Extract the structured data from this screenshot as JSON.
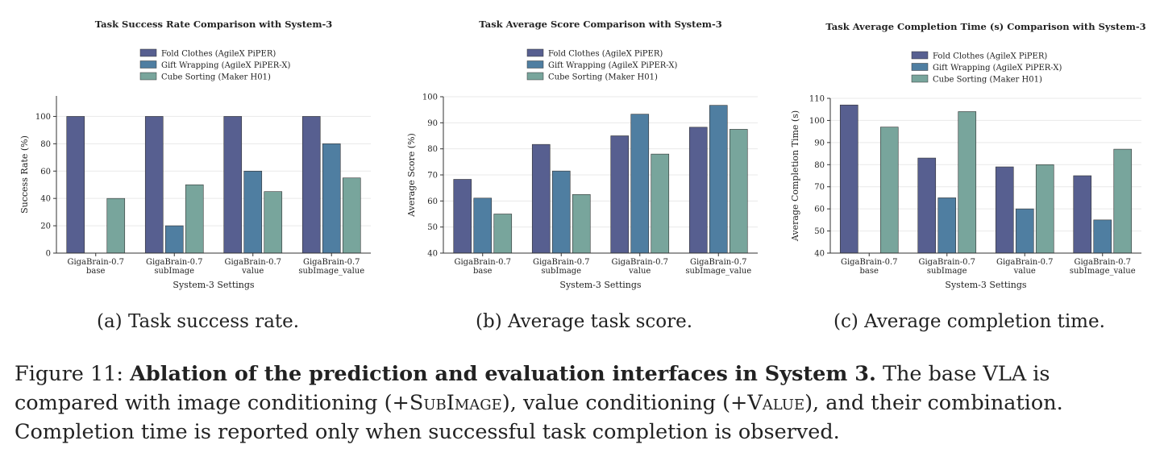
{
  "charts": [
    {
      "id": "a",
      "subcaption": "(a) Task success rate."
    },
    {
      "id": "b",
      "subcaption": "(b) Average task score."
    },
    {
      "id": "c",
      "subcaption": "(c) Average completion time."
    }
  ],
  "caption": {
    "label": "Figure 11:",
    "title": "Ablation of the prediction and evaluation interfaces in System 3.",
    "text_1": " The base VLA is compared with image conditioning (+",
    "subimage": "SubImage",
    "text_2": "), value conditioning (+",
    "value": "Value",
    "text_3": "), and their combination. Completion time is reported only when successful task completion is observed."
  },
  "colors": {
    "fold": "#575f90",
    "gift": "#4f7ea1",
    "cube": "#78a59c"
  },
  "chart_data": [
    {
      "type": "bar",
      "title": "Task Success Rate Comparison with System-3",
      "xlabel": "System-3 Settings",
      "ylabel": "Success Rate (%)",
      "categories": [
        [
          "GigaBrain-0.7",
          "base"
        ],
        [
          "GigaBrain-0.7",
          "subImage"
        ],
        [
          "GigaBrain-0.7",
          "value"
        ],
        [
          "GigaBrain-0.7",
          "subImage_value"
        ]
      ],
      "ylim": [
        0,
        115
      ],
      "yticks": [
        0,
        20,
        40,
        60,
        80,
        100
      ],
      "grid": true,
      "legend": "top-center",
      "series": [
        {
          "name": "Fold Clothes (AgileX PiPER)",
          "values": [
            100,
            100,
            100,
            100
          ]
        },
        {
          "name": "Gift Wrapping (AgileX PiPER-X)",
          "values": [
            0,
            20,
            60,
            80
          ]
        },
        {
          "name": "Cube Sorting (Maker H01)",
          "values": [
            40,
            50,
            45,
            55
          ]
        }
      ]
    },
    {
      "type": "bar",
      "title": "Task Average Score Comparison with System-3",
      "xlabel": "System-3 Settings",
      "ylabel": "Average Score (%)",
      "categories": [
        [
          "GigaBrain-0.7",
          "base"
        ],
        [
          "GigaBrain-0.7",
          "subImage"
        ],
        [
          "GigaBrain-0.7",
          "value"
        ],
        [
          "GigaBrain-0.7",
          "subImage_value"
        ]
      ],
      "ylim": [
        40,
        100
      ],
      "yticks": [
        40,
        50,
        60,
        70,
        80,
        90,
        100
      ],
      "grid": true,
      "legend": "top-center",
      "series": [
        {
          "name": "Fold Clothes (AgileX PiPER)",
          "values": [
            68.3,
            81.7,
            85,
            88.3
          ]
        },
        {
          "name": "Gift Wrapping (AgileX PiPER-X)",
          "values": [
            61.1,
            71.5,
            93.3,
            96.7
          ]
        },
        {
          "name": "Cube Sorting (Maker H01)",
          "values": [
            55,
            62.5,
            78,
            87.5
          ]
        }
      ]
    },
    {
      "type": "bar",
      "title": "Task Average Completion Time (s) Comparison with System-3",
      "xlabel": "System-3 Settings",
      "ylabel": "Average Completion Time (s)",
      "categories": [
        [
          "GigaBrain-0.7",
          "base"
        ],
        [
          "GigaBrain-0.7",
          "subImage"
        ],
        [
          "GigaBrain-0.7",
          "value"
        ],
        [
          "GigaBrain-0.7",
          "subImage_value"
        ]
      ],
      "ylim": [
        40,
        110
      ],
      "yticks": [
        40,
        50,
        60,
        70,
        80,
        90,
        100,
        110
      ],
      "grid": true,
      "legend": "top-center",
      "series": [
        {
          "name": "Fold Clothes (AgileX PiPER)",
          "values": [
            107,
            83,
            79,
            75
          ]
        },
        {
          "name": "Gift Wrapping (AgileX PiPER-X)",
          "values": [
            null,
            65,
            60,
            55
          ]
        },
        {
          "name": "Cube Sorting (Maker H01)",
          "values": [
            97,
            104,
            80,
            87
          ]
        }
      ]
    }
  ]
}
